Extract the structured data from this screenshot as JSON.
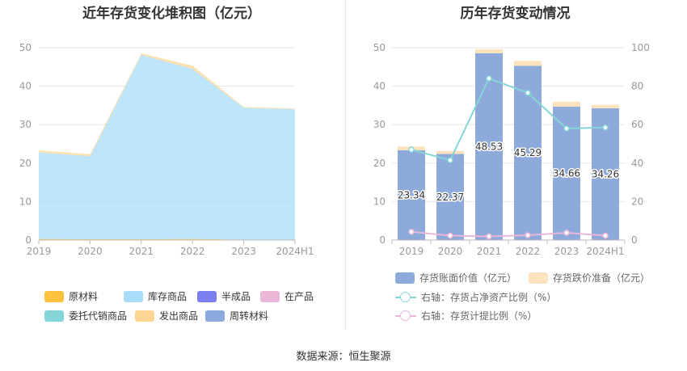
{
  "left": {
    "title": "近年存货变化堆积图（亿元）",
    "legend": [
      {
        "label": "原材料",
        "color": "#fcc23c"
      },
      {
        "label": "库存商品",
        "color": "#a9dcf8"
      },
      {
        "label": "半成品",
        "color": "#7b7ff2"
      },
      {
        "label": "在产品",
        "color": "#eab7d9"
      },
      {
        "label": "委托代销商品",
        "color": "#84d5d8"
      },
      {
        "label": "发出商品",
        "color": "#fcd692"
      },
      {
        "label": "周转材料",
        "color": "#8ba9dc"
      }
    ]
  },
  "right": {
    "title": "历年存货变动情况",
    "legend": [
      {
        "label": "存货账面价值（亿元）",
        "color": "#8eaadb",
        "kind": "bar"
      },
      {
        "label": "存货跌价准备（亿元）",
        "color": "#fde3bd",
        "kind": "bar"
      },
      {
        "label": "右轴：存货占净资产比例（%）",
        "color": "#84d5d8",
        "kind": "line"
      },
      {
        "label": "右轴：存货计提比例（%）",
        "color": "#eab7d9",
        "kind": "line"
      }
    ]
  },
  "source": "数据来源：恒生聚源",
  "chart_data": [
    {
      "type": "area",
      "title": "近年存货变化堆积图（亿元）",
      "categories": [
        "2019",
        "2020",
        "2021",
        "2022",
        "2023",
        "2024H1"
      ],
      "ylim": [
        0,
        50
      ],
      "yticks": [
        0,
        10,
        20,
        30,
        40,
        50
      ],
      "series": [
        {
          "name": "原材料",
          "values": [
            0.3,
            0.2,
            0.2,
            0.3,
            0.1,
            0.1
          ]
        },
        {
          "name": "库存商品",
          "values": [
            22.5,
            21.6,
            47.9,
            44.2,
            34.3,
            33.9
          ]
        },
        {
          "name": "半成品",
          "values": [
            0,
            0,
            0,
            0,
            0,
            0
          ]
        },
        {
          "name": "在产品",
          "values": [
            0,
            0,
            0,
            0,
            0,
            0
          ]
        },
        {
          "name": "委托代销商品",
          "values": [
            0,
            0,
            0,
            0,
            0,
            0
          ]
        },
        {
          "name": "发出商品",
          "values": [
            0.5,
            0.5,
            0.4,
            0.8,
            0.2,
            0.2
          ]
        },
        {
          "name": "周转材料",
          "values": [
            0,
            0,
            0,
            0,
            0,
            0
          ]
        }
      ],
      "legend_position": "bottom"
    },
    {
      "type": "bar",
      "title": "历年存货变动情况",
      "categories": [
        "2019",
        "2020",
        "2021",
        "2022",
        "2023",
        "2024H1"
      ],
      "ylim": [
        0,
        50
      ],
      "yticks": [
        0,
        10,
        20,
        30,
        40,
        50
      ],
      "y2lim": [
        0,
        100
      ],
      "y2ticks": [
        0,
        20,
        40,
        60,
        80,
        100
      ],
      "series": [
        {
          "name": "存货账面价值（亿元）",
          "values": [
            23.34,
            22.37,
            48.53,
            45.29,
            34.66,
            34.26
          ],
          "labels": [
            "23.34",
            "22.37",
            "48.53",
            "45.29",
            "34.66",
            "34.26"
          ]
        },
        {
          "name": "存货跌价准备（亿元）",
          "values": [
            1.0,
            0.8,
            1.1,
            1.3,
            1.3,
            0.9
          ]
        },
        {
          "name": "右轴：存货占净资产比例（%）",
          "axis": "right",
          "values": [
            47.0,
            41.5,
            84.0,
            76.5,
            58.0,
            58.5
          ]
        },
        {
          "name": "右轴：存货计提比例（%）",
          "axis": "right",
          "values": [
            4.3,
            2.3,
            1.9,
            2.5,
            3.8,
            2.3
          ]
        }
      ],
      "legend_position": "bottom"
    }
  ]
}
